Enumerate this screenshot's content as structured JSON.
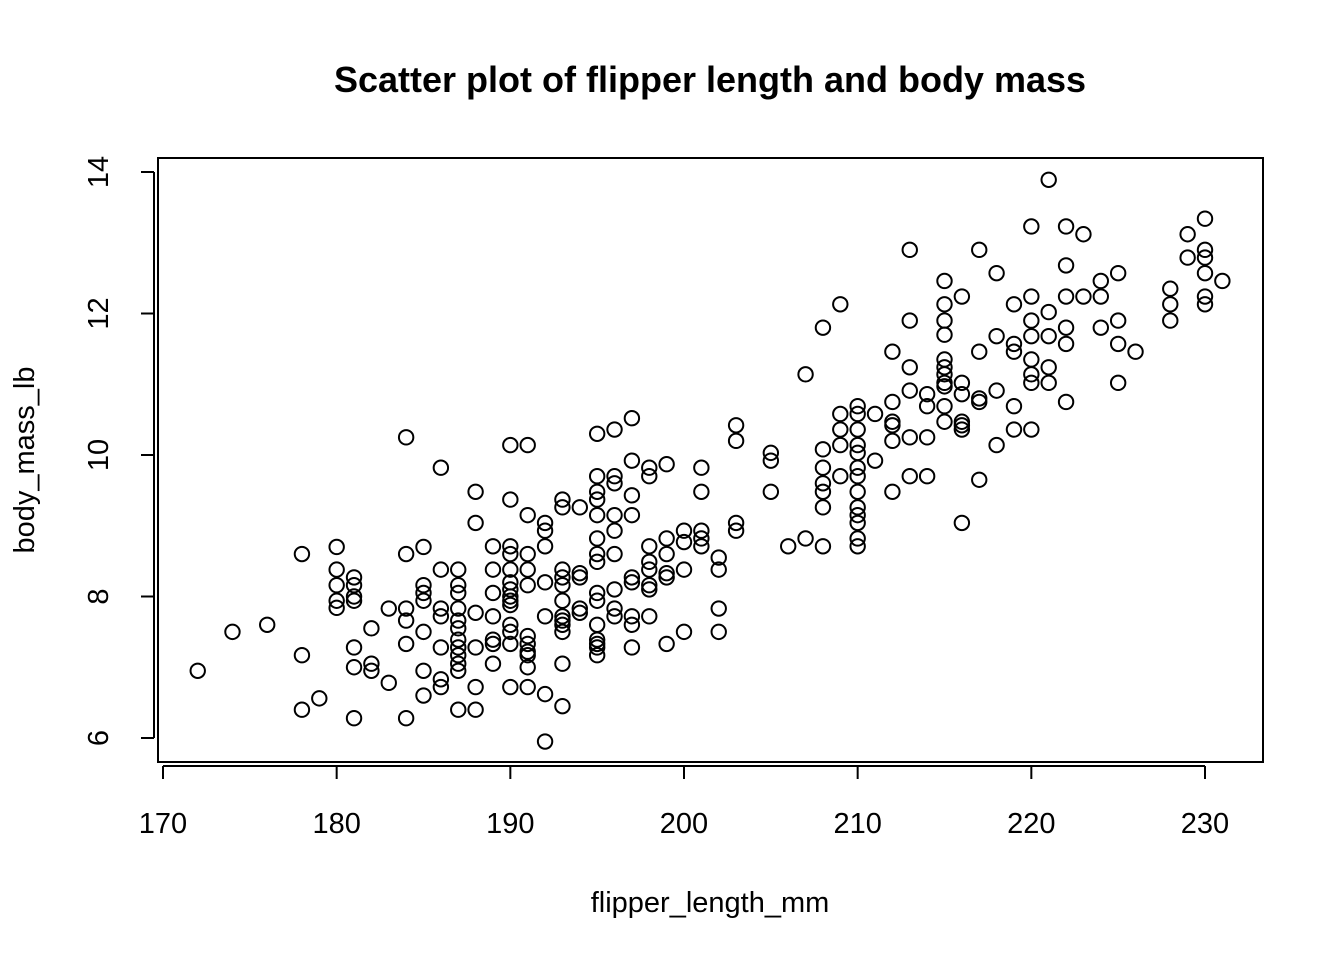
{
  "chart_data": {
    "type": "scatter",
    "title": "Scatter plot of flipper length and body mass",
    "xlabel": "flipper_length_mm",
    "ylabel": "body_mass_lb",
    "xlim": [
      170,
      232
    ],
    "ylim": [
      5.75,
      14.2
    ],
    "xticks": [
      170,
      180,
      190,
      200,
      210,
      220,
      230
    ],
    "yticks": [
      6,
      8,
      10,
      12,
      14
    ],
    "grid": false,
    "points": [
      [
        172,
        6.95
      ],
      [
        174,
        7.5
      ],
      [
        176,
        7.6
      ],
      [
        178,
        8.6
      ],
      [
        178,
        7.17
      ],
      [
        178,
        6.4
      ],
      [
        179,
        6.56
      ],
      [
        180,
        8.7
      ],
      [
        180,
        8.38
      ],
      [
        180,
        8.16
      ],
      [
        180,
        7.94
      ],
      [
        180,
        7.84
      ],
      [
        181,
        8.27
      ],
      [
        181,
        8.16
      ],
      [
        181,
        8.0
      ],
      [
        181,
        7.94
      ],
      [
        181,
        7.28
      ],
      [
        181,
        7.0
      ],
      [
        181,
        6.28
      ],
      [
        182,
        7.55
      ],
      [
        182,
        7.05
      ],
      [
        182,
        6.95
      ],
      [
        183,
        7.83
      ],
      [
        183,
        6.78
      ],
      [
        184,
        10.25
      ],
      [
        184,
        8.6
      ],
      [
        184,
        7.83
      ],
      [
        184,
        7.66
      ],
      [
        184,
        7.33
      ],
      [
        184,
        6.28
      ],
      [
        185,
        8.7
      ],
      [
        185,
        8.16
      ],
      [
        185,
        8.05
      ],
      [
        185,
        7.94
      ],
      [
        185,
        7.5
      ],
      [
        185,
        6.95
      ],
      [
        185,
        6.6
      ],
      [
        186,
        9.82
      ],
      [
        186,
        8.38
      ],
      [
        186,
        7.83
      ],
      [
        186,
        7.72
      ],
      [
        186,
        7.28
      ],
      [
        186,
        6.83
      ],
      [
        186,
        6.72
      ],
      [
        187,
        8.38
      ],
      [
        187,
        8.16
      ],
      [
        187,
        8.05
      ],
      [
        187,
        7.83
      ],
      [
        187,
        7.66
      ],
      [
        187,
        7.55
      ],
      [
        187,
        7.39
      ],
      [
        187,
        7.28
      ],
      [
        187,
        7.17
      ],
      [
        187,
        7.05
      ],
      [
        187,
        6.95
      ],
      [
        187,
        6.4
      ],
      [
        188,
        9.48
      ],
      [
        188,
        9.04
      ],
      [
        188,
        7.77
      ],
      [
        188,
        7.28
      ],
      [
        188,
        6.72
      ],
      [
        188,
        6.4
      ],
      [
        189,
        8.71
      ],
      [
        189,
        8.38
      ],
      [
        189,
        8.05
      ],
      [
        189,
        7.72
      ],
      [
        189,
        7.39
      ],
      [
        189,
        7.33
      ],
      [
        189,
        7.05
      ],
      [
        190,
        10.14
      ],
      [
        190,
        9.37
      ],
      [
        190,
        8.71
      ],
      [
        190,
        8.6
      ],
      [
        190,
        8.38
      ],
      [
        190,
        8.2
      ],
      [
        190,
        8.1
      ],
      [
        190,
        8.0
      ],
      [
        190,
        7.94
      ],
      [
        190,
        7.88
      ],
      [
        190,
        7.6
      ],
      [
        190,
        7.5
      ],
      [
        190,
        7.33
      ],
      [
        190,
        6.72
      ],
      [
        191,
        10.14
      ],
      [
        191,
        9.15
      ],
      [
        191,
        8.6
      ],
      [
        191,
        8.38
      ],
      [
        191,
        8.16
      ],
      [
        191,
        7.44
      ],
      [
        191,
        7.33
      ],
      [
        191,
        7.22
      ],
      [
        191,
        7.17
      ],
      [
        191,
        7.0
      ],
      [
        191,
        6.72
      ],
      [
        192,
        9.04
      ],
      [
        192,
        8.93
      ],
      [
        192,
        8.71
      ],
      [
        192,
        8.2
      ],
      [
        192,
        7.72
      ],
      [
        192,
        6.62
      ],
      [
        192,
        5.95
      ],
      [
        193,
        9.37
      ],
      [
        193,
        9.26
      ],
      [
        193,
        8.38
      ],
      [
        193,
        8.27
      ],
      [
        193,
        8.16
      ],
      [
        193,
        7.94
      ],
      [
        193,
        7.72
      ],
      [
        193,
        7.66
      ],
      [
        193,
        7.6
      ],
      [
        193,
        7.5
      ],
      [
        193,
        7.05
      ],
      [
        193,
        6.45
      ],
      [
        194,
        9.26
      ],
      [
        194,
        8.33
      ],
      [
        194,
        8.27
      ],
      [
        194,
        7.83
      ],
      [
        194,
        7.77
      ],
      [
        195,
        10.3
      ],
      [
        195,
        9.7
      ],
      [
        195,
        9.48
      ],
      [
        195,
        9.37
      ],
      [
        195,
        9.15
      ],
      [
        195,
        8.82
      ],
      [
        195,
        8.6
      ],
      [
        195,
        8.49
      ],
      [
        195,
        8.05
      ],
      [
        195,
        7.94
      ],
      [
        195,
        7.6
      ],
      [
        195,
        7.39
      ],
      [
        195,
        7.33
      ],
      [
        195,
        7.28
      ],
      [
        195,
        7.17
      ],
      [
        196,
        10.36
      ],
      [
        196,
        9.7
      ],
      [
        196,
        9.6
      ],
      [
        196,
        9.15
      ],
      [
        196,
        8.93
      ],
      [
        196,
        8.6
      ],
      [
        196,
        8.1
      ],
      [
        196,
        7.83
      ],
      [
        196,
        7.72
      ],
      [
        197,
        10.52
      ],
      [
        197,
        9.92
      ],
      [
        197,
        9.43
      ],
      [
        197,
        9.15
      ],
      [
        197,
        8.27
      ],
      [
        197,
        8.2
      ],
      [
        197,
        7.72
      ],
      [
        197,
        7.6
      ],
      [
        197,
        7.28
      ],
      [
        198,
        9.82
      ],
      [
        198,
        9.7
      ],
      [
        198,
        8.71
      ],
      [
        198,
        8.49
      ],
      [
        198,
        8.38
      ],
      [
        198,
        8.16
      ],
      [
        198,
        8.1
      ],
      [
        198,
        7.72
      ],
      [
        199,
        9.87
      ],
      [
        199,
        8.82
      ],
      [
        199,
        8.6
      ],
      [
        199,
        8.33
      ],
      [
        199,
        8.27
      ],
      [
        199,
        7.33
      ],
      [
        200,
        8.93
      ],
      [
        200,
        8.77
      ],
      [
        200,
        8.38
      ],
      [
        200,
        7.5
      ],
      [
        201,
        9.82
      ],
      [
        201,
        9.48
      ],
      [
        201,
        8.93
      ],
      [
        201,
        8.82
      ],
      [
        201,
        8.71
      ],
      [
        202,
        8.55
      ],
      [
        202,
        8.38
      ],
      [
        202,
        7.83
      ],
      [
        202,
        7.5
      ],
      [
        203,
        10.42
      ],
      [
        203,
        10.2
      ],
      [
        203,
        9.04
      ],
      [
        203,
        8.93
      ],
      [
        205,
        10.03
      ],
      [
        205,
        9.92
      ],
      [
        205,
        9.48
      ],
      [
        206,
        8.71
      ],
      [
        207,
        11.14
      ],
      [
        207,
        8.82
      ],
      [
        208,
        11.8
      ],
      [
        208,
        10.08
      ],
      [
        208,
        9.82
      ],
      [
        208,
        9.6
      ],
      [
        208,
        9.48
      ],
      [
        208,
        9.26
      ],
      [
        208,
        8.71
      ],
      [
        209,
        12.13
      ],
      [
        209,
        10.58
      ],
      [
        209,
        10.36
      ],
      [
        209,
        10.14
      ],
      [
        209,
        9.7
      ],
      [
        210,
        10.69
      ],
      [
        210,
        10.58
      ],
      [
        210,
        10.36
      ],
      [
        210,
        10.14
      ],
      [
        210,
        10.03
      ],
      [
        210,
        9.82
      ],
      [
        210,
        9.7
      ],
      [
        210,
        9.48
      ],
      [
        210,
        9.26
      ],
      [
        210,
        9.15
      ],
      [
        210,
        9.04
      ],
      [
        210,
        8.82
      ],
      [
        210,
        8.71
      ],
      [
        211,
        10.58
      ],
      [
        211,
        9.92
      ],
      [
        212,
        11.46
      ],
      [
        212,
        10.75
      ],
      [
        212,
        10.47
      ],
      [
        212,
        10.42
      ],
      [
        212,
        10.2
      ],
      [
        212,
        9.48
      ],
      [
        213,
        12.9
      ],
      [
        213,
        11.9
      ],
      [
        213,
        11.24
      ],
      [
        213,
        10.91
      ],
      [
        213,
        10.25
      ],
      [
        213,
        9.7
      ],
      [
        214,
        10.86
      ],
      [
        214,
        10.69
      ],
      [
        214,
        10.25
      ],
      [
        214,
        9.7
      ],
      [
        215,
        12.46
      ],
      [
        215,
        12.13
      ],
      [
        215,
        11.9
      ],
      [
        215,
        11.7
      ],
      [
        215,
        11.35
      ],
      [
        215,
        11.24
      ],
      [
        215,
        11.14
      ],
      [
        215,
        11.02
      ],
      [
        215,
        10.97
      ],
      [
        215,
        10.69
      ],
      [
        215,
        10.47
      ],
      [
        216,
        12.24
      ],
      [
        216,
        11.02
      ],
      [
        216,
        10.86
      ],
      [
        216,
        10.47
      ],
      [
        216,
        10.42
      ],
      [
        216,
        10.36
      ],
      [
        216,
        9.04
      ],
      [
        217,
        12.9
      ],
      [
        217,
        11.46
      ],
      [
        217,
        10.8
      ],
      [
        217,
        10.75
      ],
      [
        217,
        9.65
      ],
      [
        218,
        12.57
      ],
      [
        218,
        11.68
      ],
      [
        218,
        10.91
      ],
      [
        218,
        10.14
      ],
      [
        219,
        12.13
      ],
      [
        219,
        11.57
      ],
      [
        219,
        11.46
      ],
      [
        219,
        10.69
      ],
      [
        219,
        10.36
      ],
      [
        220,
        13.23
      ],
      [
        220,
        12.24
      ],
      [
        220,
        11.9
      ],
      [
        220,
        11.68
      ],
      [
        220,
        11.35
      ],
      [
        220,
        11.14
      ],
      [
        220,
        11.02
      ],
      [
        220,
        10.36
      ],
      [
        221,
        13.89
      ],
      [
        221,
        12.02
      ],
      [
        221,
        11.68
      ],
      [
        221,
        11.24
      ],
      [
        221,
        11.02
      ],
      [
        222,
        13.23
      ],
      [
        222,
        12.68
      ],
      [
        222,
        12.24
      ],
      [
        222,
        11.8
      ],
      [
        222,
        11.57
      ],
      [
        222,
        10.75
      ],
      [
        223,
        13.12
      ],
      [
        223,
        12.24
      ],
      [
        224,
        12.46
      ],
      [
        224,
        12.24
      ],
      [
        224,
        11.8
      ],
      [
        225,
        12.57
      ],
      [
        225,
        11.9
      ],
      [
        225,
        11.57
      ],
      [
        225,
        11.02
      ],
      [
        226,
        11.46
      ],
      [
        228,
        12.35
      ],
      [
        228,
        12.13
      ],
      [
        228,
        11.9
      ],
      [
        229,
        13.12
      ],
      [
        229,
        12.79
      ],
      [
        230,
        13.34
      ],
      [
        230,
        12.9
      ],
      [
        230,
        12.79
      ],
      [
        230,
        12.57
      ],
      [
        230,
        12.24
      ],
      [
        230,
        12.13
      ],
      [
        231,
        12.46
      ]
    ]
  }
}
